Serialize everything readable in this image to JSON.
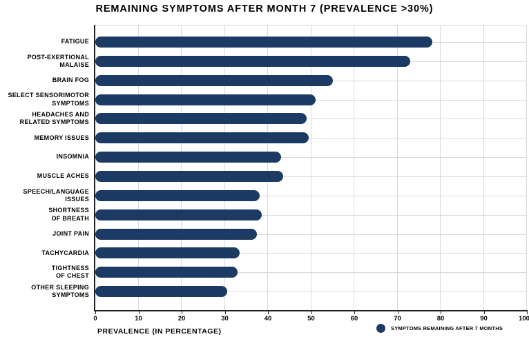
{
  "title": "REMAINING SYMPTOMS AFTER MONTH 7 (PREVALENCE >30%)",
  "colors": {
    "bar": "#1b3a64",
    "grid": "#d9d9d9",
    "axis": "#1f1f1f",
    "text": "#000000",
    "background": "#ffffff"
  },
  "chart_data": {
    "type": "bar",
    "orientation": "horizontal",
    "title": "REMAINING SYMPTOMS AFTER MONTH 7 (PREVALENCE >30%)",
    "categories": [
      "FATIGUE",
      "POST-EXERTIONAL\nMALAISE",
      "BRAIN FOG",
      "SELECT SENSORIMOTOR\nSYMPTOMS",
      "HEADACHES AND\nRELATED SYMPTOMS",
      "MEMORY ISSUES",
      "INSOMNIA",
      "MUSCLE ACHES",
      "SPEECH/LANGUAGE\nISSUES",
      "SHORTNESS\nOF BREATH",
      "JOINT PAIN",
      "TACHYCARDIA",
      "TIGHTNESS\nOF CHEST",
      "OTHER SLEEPING\nSYMPTOMS"
    ],
    "values": [
      78,
      73,
      55,
      51,
      49,
      49.5,
      43,
      43.5,
      38,
      38.5,
      37.5,
      33.5,
      33,
      30.5
    ],
    "xlabel": "PREVALENCE (IN PERCENTAGE)",
    "ylabel": "",
    "xlim": [
      0,
      100
    ],
    "xticks": [
      0,
      10,
      20,
      30,
      40,
      50,
      60,
      70,
      80,
      90,
      100
    ],
    "grid": true,
    "legend": [
      "SYMPTOMS REMAINING AFTER 7 MONTHS"
    ],
    "legend_position": "bottom-right"
  }
}
